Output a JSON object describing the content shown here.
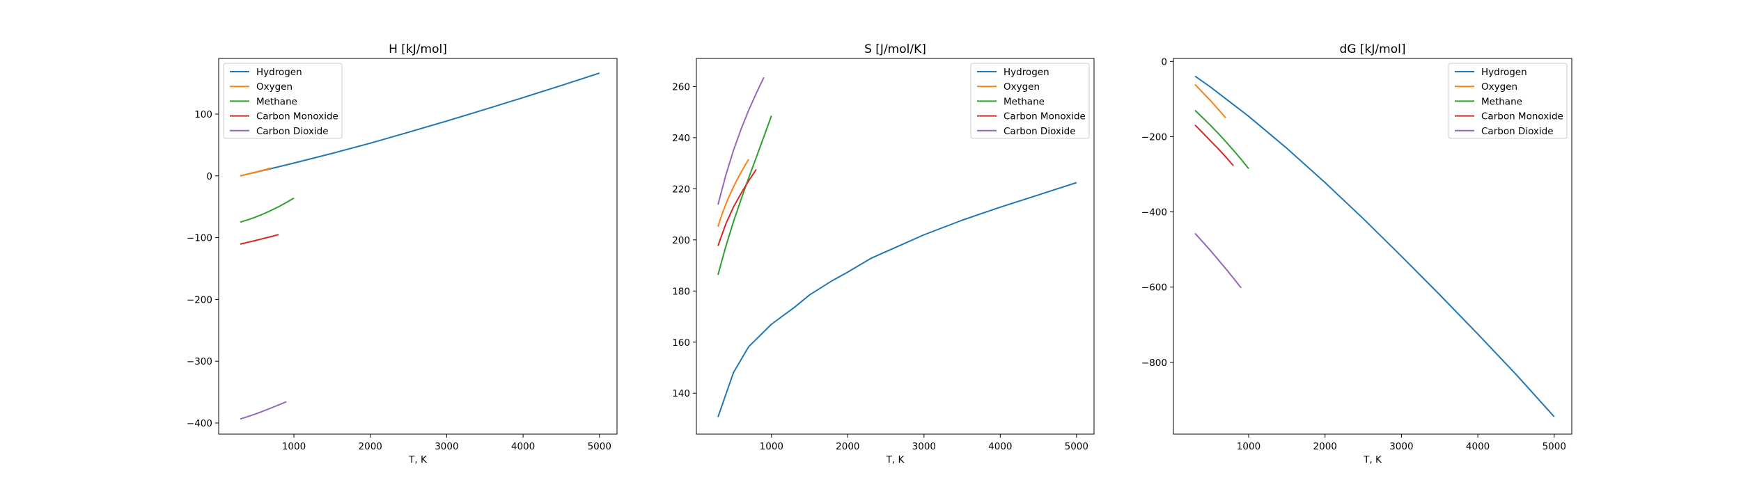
{
  "figure": {
    "background": "#ffffff"
  },
  "chart_data": [
    {
      "type": "line",
      "title": "H [kJ/mol]",
      "xlabel": "T, K",
      "ylabel": "",
      "xlim": [
        15,
        5230
      ],
      "ylim": [
        -418,
        190
      ],
      "xticks": [
        1000,
        2000,
        3000,
        4000,
        5000
      ],
      "yticks": [
        -400,
        -300,
        -200,
        -100,
        0,
        100
      ],
      "grid": false,
      "legend": "upper left",
      "series": [
        {
          "name": "Hydrogen",
          "color": "#1f77b4",
          "x": [
            298,
            500,
            700,
            1000,
            1500,
            2000,
            2500,
            3000,
            3500,
            4000,
            4500,
            5000
          ],
          "y": [
            0,
            5.9,
            11.7,
            20.7,
            36.3,
            52.9,
            70.5,
            88.7,
            107.5,
            126.6,
            146.2,
            166.2
          ]
        },
        {
          "name": "Oxygen",
          "color": "#ff7f0e",
          "x": [
            298,
            400,
            500,
            600,
            700
          ],
          "y": [
            0,
            3.0,
            6.1,
            9.2,
            12.5
          ]
        },
        {
          "name": "Methane",
          "color": "#2ca02c",
          "x": [
            298,
            400,
            500,
            600,
            700,
            800,
            900,
            1000
          ],
          "y": [
            -74.9,
            -71.0,
            -66.6,
            -61.6,
            -56.0,
            -49.9,
            -43.2,
            -36.1
          ]
        },
        {
          "name": "Carbon Monoxide",
          "color": "#d62728",
          "x": [
            298,
            400,
            500,
            600,
            700,
            800
          ],
          "y": [
            -110.5,
            -107.5,
            -104.5,
            -101.4,
            -98.3,
            -95.1
          ]
        },
        {
          "name": "Carbon Dioxide",
          "color": "#9467bd",
          "x": [
            298,
            400,
            500,
            600,
            700,
            800,
            900
          ],
          "y": [
            -393.5,
            -389.5,
            -385.2,
            -380.6,
            -375.8,
            -370.8,
            -365.6
          ]
        }
      ]
    },
    {
      "type": "line",
      "title": "S [J/mol/K]",
      "xlabel": "T, K",
      "ylabel": "",
      "xlim": [
        15,
        5230
      ],
      "ylim": [
        124,
        271
      ],
      "xticks": [
        1000,
        2000,
        3000,
        4000,
        5000
      ],
      "yticks": [
        140,
        160,
        180,
        200,
        220,
        240,
        260
      ],
      "grid": false,
      "legend": "upper right",
      "series": [
        {
          "name": "Hydrogen",
          "color": "#1f77b4",
          "x": [
            298,
            500,
            700,
            1000,
            1300,
            1500,
            1800,
            2000,
            2300,
            2600,
            3000,
            3500,
            4000,
            4500,
            5000
          ],
          "y": [
            130.7,
            148.0,
            158.2,
            167.0,
            173.6,
            178.5,
            184.1,
            187.4,
            192.7,
            196.7,
            202.0,
            207.7,
            212.8,
            217.6,
            222.4
          ]
        },
        {
          "name": "Oxygen",
          "color": "#ff7f0e",
          "x": [
            298,
            350,
            400,
            450,
            500,
            550,
            600,
            650,
            700
          ],
          "y": [
            205.2,
            210.0,
            213.9,
            217.4,
            220.6,
            223.6,
            226.4,
            229.0,
            231.5
          ]
        },
        {
          "name": "Methane",
          "color": "#2ca02c",
          "x": [
            298,
            400,
            500,
            600,
            700,
            800,
            900,
            1000
          ],
          "y": [
            186.3,
            197.4,
            207.0,
            215.8,
            224.2,
            232.3,
            240.4,
            248.6
          ]
        },
        {
          "name": "Carbon Monoxide",
          "color": "#d62728",
          "x": [
            298,
            400,
            500,
            600,
            700,
            800
          ],
          "y": [
            197.7,
            206.2,
            212.8,
            218.2,
            223.1,
            227.6
          ]
        },
        {
          "name": "Carbon Dioxide",
          "color": "#9467bd",
          "x": [
            298,
            400,
            500,
            600,
            700,
            800,
            900
          ],
          "y": [
            213.8,
            225.3,
            234.9,
            243.3,
            250.7,
            257.4,
            263.6
          ]
        }
      ]
    },
    {
      "type": "line",
      "title": "dG [kJ/mol]",
      "xlabel": "T, K",
      "ylabel": "",
      "xlim": [
        15,
        5230
      ],
      "ylim": [
        -991,
        8
      ],
      "xticks": [
        1000,
        2000,
        3000,
        4000,
        5000
      ],
      "yticks": [
        -800,
        -600,
        -400,
        -200,
        0
      ],
      "grid": false,
      "legend": "upper right",
      "series": [
        {
          "name": "Hydrogen",
          "color": "#1f77b4",
          "x": [
            298,
            500,
            1000,
            1500,
            2000,
            2500,
            3000,
            3500,
            4000,
            4500,
            5000
          ],
          "y": [
            -39,
            -68,
            -146,
            -231,
            -322,
            -418,
            -518,
            -620,
            -725,
            -832,
            -945
          ]
        },
        {
          "name": "Oxygen",
          "color": "#ff7f0e",
          "x": [
            298,
            400,
            500,
            600,
            700
          ],
          "y": [
            -61,
            -83,
            -104,
            -127,
            -150
          ]
        },
        {
          "name": "Methane",
          "color": "#2ca02c",
          "x": [
            298,
            400,
            500,
            600,
            700,
            800,
            900,
            1000
          ],
          "y": [
            -130,
            -150,
            -170,
            -191,
            -213,
            -236,
            -260,
            -285
          ]
        },
        {
          "name": "Carbon Monoxide",
          "color": "#d62728",
          "x": [
            298,
            400,
            500,
            600,
            700,
            800
          ],
          "y": [
            -169,
            -190,
            -211,
            -232,
            -254,
            -277
          ]
        },
        {
          "name": "Carbon Dioxide",
          "color": "#9467bd",
          "x": [
            298,
            400,
            500,
            600,
            700,
            800,
            900
          ],
          "y": [
            -457,
            -480,
            -503,
            -527,
            -551,
            -576,
            -602
          ]
        }
      ]
    }
  ]
}
